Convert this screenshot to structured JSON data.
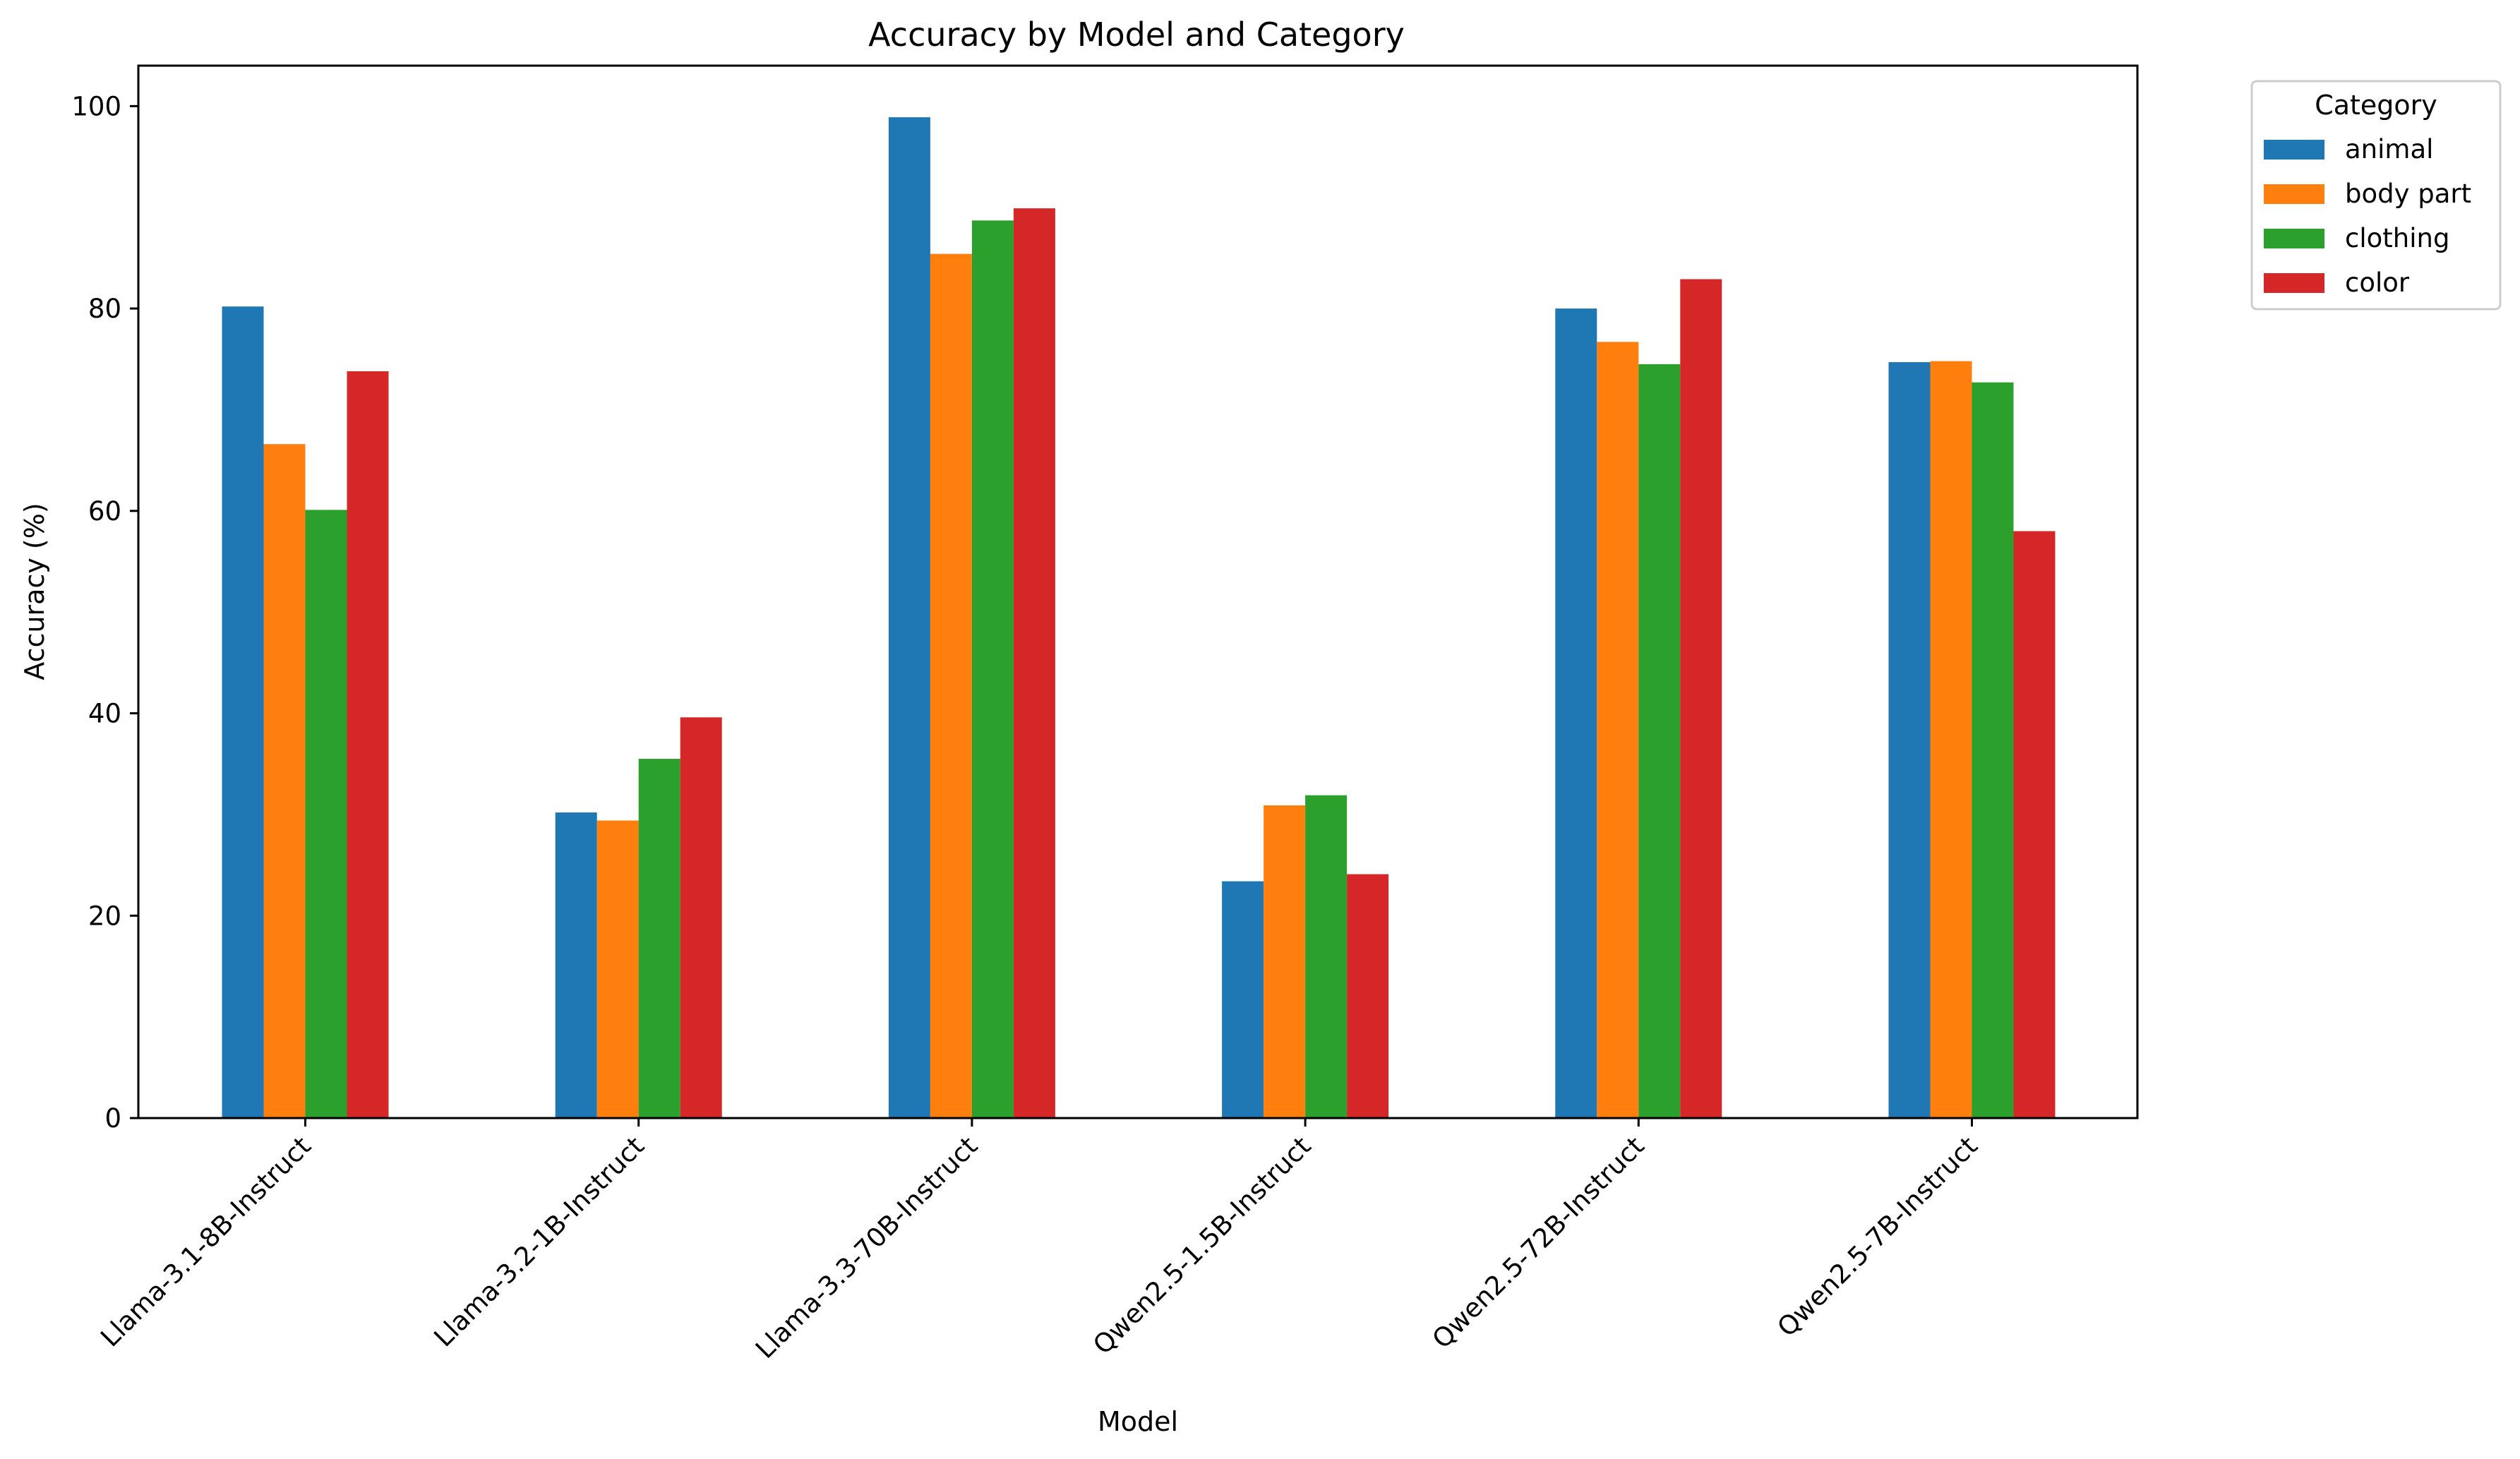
{
  "chart_data": {
    "type": "bar",
    "title": "Accuracy by Model and Category",
    "xlabel": "Model",
    "ylabel": "Accuracy (%)",
    "categories": [
      "Llama-3.1-8B-Instruct",
      "Llama-3.2-1B-Instruct",
      "Llama-3.3-70B-Instruct",
      "Qwen2.5-1.5B-Instruct",
      "Qwen2.5-72B-Instruct",
      "Qwen2.5-7B-Instruct"
    ],
    "series": [
      {
        "name": "animal",
        "color": "#1f77b4",
        "values": [
          80.2,
          30.2,
          98.9,
          23.4,
          80.0,
          74.7
        ]
      },
      {
        "name": "body part",
        "color": "#ff7f0e",
        "values": [
          66.6,
          29.4,
          85.4,
          30.9,
          76.7,
          74.8
        ]
      },
      {
        "name": "clothing",
        "color": "#2ca02c",
        "values": [
          60.1,
          35.5,
          88.7,
          31.9,
          74.5,
          72.7
        ]
      },
      {
        "name": "color",
        "color": "#d62728",
        "values": [
          73.8,
          39.6,
          89.9,
          24.1,
          82.9,
          58.0
        ]
      }
    ],
    "ylim": [
      0,
      104
    ],
    "yticks": [
      0,
      20,
      40,
      60,
      80,
      100
    ],
    "legend": {
      "title": "Category",
      "placement": "outside-top-right"
    },
    "grid": false
  }
}
